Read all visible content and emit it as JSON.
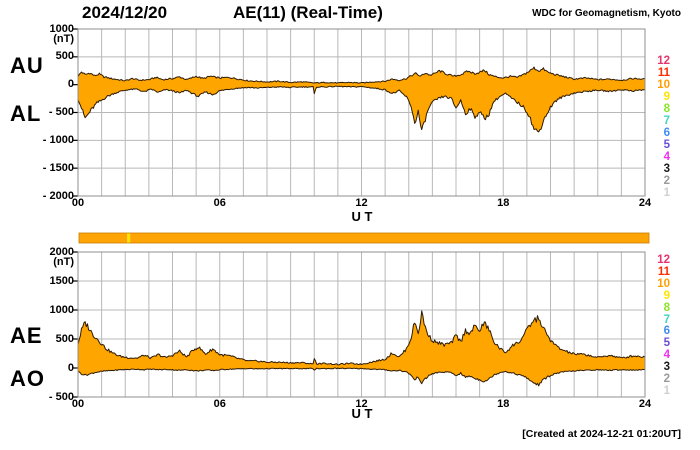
{
  "header": {
    "date": "2024/12/20",
    "title": "AE(11) (Real-Time)",
    "source": "WDC for Geomagnetism, Kyoto"
  },
  "footer": {
    "created": "[Created at 2024-12-21 01:20UT]"
  },
  "colors": {
    "fill": "#ffa500",
    "outline": "#2d1a00",
    "grid": "#b8b8b8",
    "frame": "#8f8f8f",
    "text": "#000000"
  },
  "station_legend": {
    "items": [
      {
        "count": "12",
        "color": "#e8336e"
      },
      {
        "count": "11",
        "color": "#ff2b00"
      },
      {
        "count": "10",
        "color": "#ff9e00"
      },
      {
        "count": "9",
        "color": "#ffe400"
      },
      {
        "count": "8",
        "color": "#8ce429"
      },
      {
        "count": "7",
        "color": "#3fd6c0"
      },
      {
        "count": "6",
        "color": "#3e8df2"
      },
      {
        "count": "5",
        "color": "#6a4fd6"
      },
      {
        "count": "4",
        "color": "#f22ff2"
      },
      {
        "count": "3",
        "color": "#1a1a1a"
      },
      {
        "count": "2",
        "color": "#9a9a9a"
      },
      {
        "count": "1",
        "color": "#cfcfcf"
      }
    ]
  },
  "station_count_bar": {
    "segments": [
      {
        "from_hour": 0,
        "to_hour": 2.05,
        "color": "#ffa405",
        "count": 10
      },
      {
        "from_hour": 2.05,
        "to_hour": 2.17,
        "color": "#ffe400",
        "count": 9
      },
      {
        "from_hour": 2.17,
        "to_hour": 24.2,
        "color": "#ffa405",
        "count": 10
      }
    ]
  },
  "chart_data": [
    {
      "type": "area",
      "panel": "AU-AL",
      "xlabel": "U T",
      "ylabel": "(nT)",
      "xlim": [
        0,
        24
      ],
      "ylim": [
        -2000,
        1000
      ],
      "grid": true,
      "xticks": [
        "00",
        "06",
        "12",
        "18",
        "24"
      ],
      "xtick_hours": [
        0,
        6,
        12,
        18,
        24
      ],
      "yticks": [
        "1000",
        "500",
        "0",
        "- 500",
        "- 1000",
        "- 1500",
        "- 2000"
      ],
      "ytick_values": [
        1000,
        500,
        0,
        -500,
        -1000,
        -1500,
        -2000
      ],
      "series": [
        {
          "name": "AU",
          "x": [
            0.0,
            0.15,
            0.3,
            0.5,
            0.7,
            0.9,
            1.1,
            1.4,
            1.7,
            2.0,
            2.3,
            2.6,
            3.0,
            3.3,
            3.6,
            4.0,
            4.3,
            4.6,
            5.0,
            5.3,
            5.6,
            6.0,
            6.4,
            6.8,
            7.2,
            7.6,
            8.0,
            8.5,
            9.0,
            9.5,
            10.0,
            10.5,
            11.0,
            11.5,
            12.0,
            12.5,
            13.0,
            13.3,
            13.6,
            13.9,
            14.1,
            14.3,
            14.5,
            14.7,
            14.9,
            15.1,
            15.3,
            15.6,
            15.9,
            16.2,
            16.5,
            16.8,
            17.0,
            17.2,
            17.4,
            17.7,
            18.0,
            18.3,
            18.6,
            18.9,
            19.1,
            19.3,
            19.5,
            19.7,
            19.9,
            20.2,
            20.5,
            21.0,
            21.5,
            22.0,
            22.5,
            23.0,
            23.5,
            24.0
          ],
          "values": [
            150,
            230,
            180,
            210,
            160,
            190,
            140,
            110,
            90,
            70,
            110,
            80,
            90,
            130,
            90,
            110,
            140,
            90,
            150,
            110,
            150,
            120,
            130,
            100,
            70,
            60,
            50,
            60,
            40,
            50,
            30,
            40,
            30,
            40,
            30,
            50,
            60,
            100,
            80,
            110,
            160,
            200,
            150,
            210,
            170,
            200,
            250,
            190,
            150,
            180,
            240,
            200,
            220,
            260,
            180,
            140,
            120,
            150,
            130,
            190,
            240,
            300,
            250,
            280,
            220,
            180,
            150,
            100,
            120,
            90,
            100,
            80,
            110,
            100
          ]
        },
        {
          "name": "AL",
          "x": [
            0.0,
            0.15,
            0.3,
            0.45,
            0.6,
            0.8,
            1.0,
            1.2,
            1.5,
            1.8,
            2.1,
            2.5,
            2.8,
            3.1,
            3.4,
            3.7,
            4.0,
            4.3,
            4.6,
            4.9,
            5.1,
            5.4,
            5.7,
            6.0,
            6.4,
            6.8,
            7.2,
            7.6,
            8.0,
            8.5,
            9.0,
            9.5,
            9.95,
            10.0,
            10.1,
            10.5,
            11.0,
            11.5,
            12.0,
            12.5,
            13.0,
            13.3,
            13.6,
            13.9,
            14.1,
            14.25,
            14.4,
            14.55,
            14.7,
            14.85,
            15.0,
            15.2,
            15.5,
            15.8,
            16.0,
            16.2,
            16.4,
            16.6,
            16.8,
            17.0,
            17.2,
            17.4,
            17.6,
            17.9,
            18.1,
            18.4,
            18.7,
            18.9,
            19.1,
            19.3,
            19.5,
            19.7,
            19.9,
            20.1,
            20.4,
            20.7,
            21.0,
            21.5,
            22.0,
            22.5,
            23.0,
            23.5,
            24.0
          ],
          "values": [
            -250,
            -420,
            -600,
            -520,
            -430,
            -330,
            -280,
            -220,
            -160,
            -120,
            -90,
            -80,
            -130,
            -80,
            -140,
            -90,
            -110,
            -150,
            -100,
            -170,
            -210,
            -130,
            -180,
            -110,
            -80,
            -60,
            -50,
            -60,
            -50,
            -40,
            -50,
            -40,
            -40,
            -170,
            -40,
            -40,
            -30,
            -40,
            -35,
            -60,
            -90,
            -160,
            -110,
            -220,
            -380,
            -700,
            -480,
            -850,
            -620,
            -420,
            -320,
            -260,
            -210,
            -250,
            -420,
            -280,
            -520,
            -430,
            -580,
            -480,
            -620,
            -520,
            -300,
            -200,
            -160,
            -260,
            -350,
            -420,
            -550,
            -800,
            -860,
            -640,
            -480,
            -340,
            -240,
            -190,
            -150,
            -120,
            -100,
            -120,
            -90,
            -110,
            -90
          ]
        }
      ]
    },
    {
      "type": "area",
      "panel": "AE-AO",
      "xlabel": "U T",
      "ylabel": "(nT)",
      "xlim": [
        0,
        24
      ],
      "ylim": [
        -500,
        2000
      ],
      "grid": true,
      "xticks": [
        "00",
        "06",
        "12",
        "18",
        "24"
      ],
      "xtick_hours": [
        0,
        6,
        12,
        18,
        24
      ],
      "yticks": [
        "2000",
        "1500",
        "1000",
        "500",
        "0",
        "- 500"
      ],
      "ytick_values": [
        2000,
        1500,
        1000,
        500,
        0,
        -500
      ],
      "series": [
        {
          "name": "AE",
          "x": [
            0.0,
            0.15,
            0.3,
            0.45,
            0.6,
            0.8,
            1.0,
            1.2,
            1.5,
            1.8,
            2.1,
            2.5,
            2.8,
            3.1,
            3.4,
            3.7,
            4.0,
            4.3,
            4.6,
            4.9,
            5.1,
            5.4,
            5.7,
            6.0,
            6.4,
            6.8,
            7.2,
            7.6,
            8.0,
            8.5,
            9.0,
            9.5,
            9.95,
            10.0,
            10.1,
            10.5,
            11.0,
            11.5,
            12.0,
            12.5,
            13.0,
            13.3,
            13.6,
            13.9,
            14.1,
            14.25,
            14.4,
            14.55,
            14.7,
            14.85,
            15.0,
            15.2,
            15.5,
            15.8,
            16.0,
            16.2,
            16.4,
            16.6,
            16.8,
            17.0,
            17.2,
            17.4,
            17.6,
            17.9,
            18.1,
            18.4,
            18.7,
            18.9,
            19.1,
            19.3,
            19.5,
            19.7,
            19.9,
            20.1,
            20.4,
            20.7,
            21.0,
            21.5,
            22.0,
            22.5,
            23.0,
            23.5,
            24.0
          ],
          "values": [
            420,
            650,
            780,
            700,
            590,
            510,
            420,
            330,
            250,
            200,
            180,
            170,
            220,
            170,
            230,
            180,
            220,
            290,
            190,
            320,
            360,
            240,
            330,
            230,
            210,
            160,
            120,
            120,
            100,
            100,
            90,
            90,
            70,
            180,
            70,
            80,
            60,
            80,
            65,
            110,
            150,
            260,
            190,
            330,
            520,
            800,
            600,
            950,
            700,
            550,
            480,
            440,
            400,
            430,
            560,
            450,
            650,
            600,
            720,
            650,
            780,
            660,
            450,
            320,
            270,
            390,
            460,
            580,
            720,
            820,
            860,
            680,
            540,
            430,
            330,
            280,
            240,
            230,
            180,
            220,
            170,
            210,
            190
          ]
        },
        {
          "name": "AO",
          "x": [
            0.0,
            0.15,
            0.3,
            0.45,
            0.6,
            0.8,
            1.0,
            1.2,
            1.5,
            1.8,
            2.1,
            2.5,
            2.8,
            3.1,
            3.4,
            3.7,
            4.0,
            4.3,
            4.6,
            4.9,
            5.1,
            5.4,
            5.7,
            6.0,
            6.4,
            6.8,
            7.2,
            7.6,
            8.0,
            8.5,
            9.0,
            9.5,
            9.95,
            10.0,
            10.1,
            10.5,
            11.0,
            11.5,
            12.0,
            12.5,
            13.0,
            13.3,
            13.6,
            13.9,
            14.1,
            14.25,
            14.4,
            14.55,
            14.7,
            14.85,
            15.0,
            15.2,
            15.5,
            15.8,
            16.0,
            16.2,
            16.4,
            16.6,
            16.8,
            17.0,
            17.2,
            17.4,
            17.6,
            17.9,
            18.1,
            18.4,
            18.7,
            18.9,
            19.1,
            19.3,
            19.5,
            19.7,
            19.9,
            20.1,
            20.4,
            20.7,
            21.0,
            21.5,
            22.0,
            22.5,
            23.0,
            23.5,
            24.0
          ],
          "values": [
            -60,
            -100,
            -120,
            -110,
            -90,
            -70,
            -60,
            -50,
            -40,
            -30,
            -25,
            -20,
            -30,
            -20,
            -30,
            -25,
            -30,
            -40,
            -30,
            -45,
            -50,
            -35,
            -45,
            -30,
            -20,
            -15,
            -10,
            -15,
            -10,
            -10,
            -10,
            -10,
            -10,
            -40,
            -10,
            -10,
            -5,
            -10,
            -10,
            -20,
            -30,
            -50,
            -40,
            -70,
            -120,
            -210,
            -150,
            -260,
            -190,
            -130,
            -100,
            -80,
            -70,
            -80,
            -130,
            -90,
            -160,
            -140,
            -180,
            -200,
            -230,
            -190,
            -120,
            -70,
            -60,
            -90,
            -120,
            -150,
            -200,
            -260,
            -290,
            -200,
            -150,
            -110,
            -80,
            -60,
            -50,
            -40,
            -30,
            -40,
            -30,
            -35,
            -30
          ]
        }
      ]
    }
  ]
}
